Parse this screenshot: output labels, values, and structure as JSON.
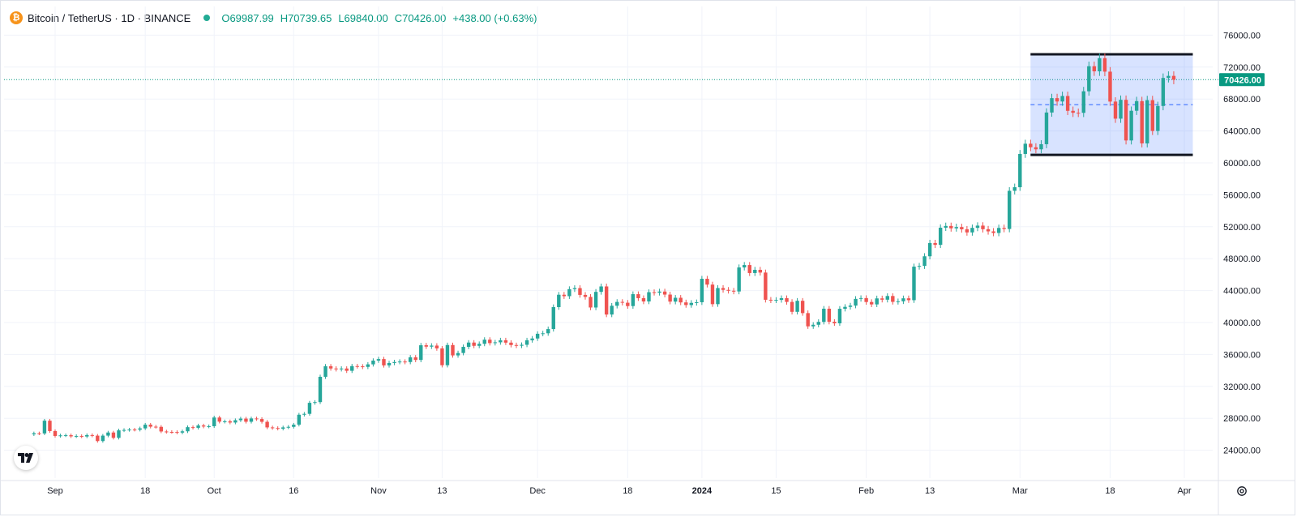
{
  "header": {
    "logo_glyph": "₿",
    "title": "Bitcoin / TetherUS · 1D · BINANCE",
    "open_label": "O",
    "open": "69987.99",
    "high_label": "H",
    "high": "70739.65",
    "low_label": "L",
    "low": "69840.00",
    "close_label": "C",
    "close": "70426.00",
    "change": "+438.00 (+0.63%)"
  },
  "colors": {
    "up": "#26a69a",
    "down": "#ef5350",
    "zone_fill": "#2962ff",
    "zone_border": "#131722",
    "price_badge": "#089981"
  },
  "icons": {
    "tv_logo": "tradingview-logo-icon",
    "settings": "gear-icon"
  },
  "chart_data": {
    "type": "candlestick",
    "title": "Bitcoin / TetherUS · 1D · BINANCE",
    "ylim": [
      20000,
      78000
    ],
    "y_ticks": [
      "24000.00",
      "28000.00",
      "32000.00",
      "36000.00",
      "40000.00",
      "44000.00",
      "48000.00",
      "52000.00",
      "56000.00",
      "60000.00",
      "64000.00",
      "68000.00",
      "72000.00",
      "76000.00"
    ],
    "x_ticks": [
      {
        "label": "Sep",
        "date": "2023-09-01"
      },
      {
        "label": "18",
        "date": "2023-09-18"
      },
      {
        "label": "Oct",
        "date": "2023-10-01"
      },
      {
        "label": "16",
        "date": "2023-10-16"
      },
      {
        "label": "Nov",
        "date": "2023-11-01"
      },
      {
        "label": "13",
        "date": "2023-11-13"
      },
      {
        "label": "Dec",
        "date": "2023-12-01"
      },
      {
        "label": "18",
        "date": "2023-12-18"
      },
      {
        "label": "2024",
        "date": "2024-01-01",
        "bold": true
      },
      {
        "label": "15",
        "date": "2024-01-15"
      },
      {
        "label": "Feb",
        "date": "2024-02-01"
      },
      {
        "label": "13",
        "date": "2024-02-13"
      },
      {
        "label": "Mar",
        "date": "2024-03-01"
      },
      {
        "label": "18",
        "date": "2024-03-18"
      },
      {
        "label": "Apr",
        "date": "2024-04-01"
      }
    ],
    "last_price": "70426.00",
    "last_price_value": 70426,
    "range_zone": {
      "start": "2024-03-01",
      "end": "2024-03-31",
      "top": 73600,
      "bottom": 61000,
      "mid": 67300
    },
    "closes": [
      {
        "start": "2023-08-28",
        "values": [
          26120,
          26100,
          27700,
          26400,
          25790,
          25860,
          25880,
          25740,
          25780,
          25720,
          25900,
          25830,
          25150,
          25830,
          26220,
          25550,
          26490,
          26540,
          26590,
          26570,
          26740,
          27200,
          26950,
          26930,
          26350,
          26290,
          26280,
          26210,
          26370,
          26890
        ]
      },
      {
        "start": "2023-09-27",
        "values": [
          26810,
          27100,
          26970,
          27010,
          28100,
          27580,
          27620,
          27470,
          27760,
          27960,
          27570,
          27980,
          27910,
          27560,
          26860,
          26780,
          26700,
          26860,
          26930,
          27200,
          28450,
          28560,
          29940,
          30030,
          33200,
          34520,
          34240,
          34140,
          34240,
          33950
        ]
      },
      {
        "start": "2023-10-27",
        "values": [
          34540,
          34510,
          34440,
          34760,
          35230,
          35420,
          34630,
          34930,
          35050,
          35110,
          35050,
          35640,
          35310,
          37150,
          36980,
          37110,
          36760,
          34650,
          37180,
          35880,
          36180,
          36950,
          37490,
          37080,
          37330,
          37850,
          37420,
          37520,
          37780,
          37480
        ]
      },
      {
        "start": "2023-11-26",
        "values": [
          37180,
          37090,
          37210,
          37780,
          38000,
          38590,
          38650,
          39180,
          41930,
          43480,
          43300,
          44180,
          44310,
          43460,
          43210,
          41880,
          43840,
          44520,
          41000,
          42100,
          42580,
          42480,
          42060,
          43550,
          43050,
          42640,
          43800,
          43730,
          43880,
          43500
        ]
      },
      {
        "start": "2023-12-26",
        "values": [
          42620,
          43100,
          42520,
          42190,
          42460,
          42540,
          45480,
          44750,
          42300,
          44320,
          44090,
          43980,
          43890,
          46900,
          47200,
          46200,
          46600,
          46260,
          42850,
          42780,
          42830,
          43050,
          42580,
          41340,
          42720,
          41180,
          39520,
          39720,
          40080,
          41730
        ]
      },
      {
        "start": "2024-01-25",
        "values": [
          40090,
          39900,
          41720,
          41960,
          42120,
          42960,
          43060,
          42570,
          42270,
          43020,
          42860,
          43320,
          42590,
          42660,
          43030,
          42800,
          47000,
          47090,
          48300,
          49960,
          49730,
          51880,
          52100,
          51800,
          51960,
          51680,
          51290,
          51860,
          52140,
          51690
        ]
      },
      {
        "start": "2024-02-24",
        "values": [
          51420,
          51220,
          51850,
          51720,
          56500,
          56950,
          61120,
          62400,
          61960,
          61700,
          62340,
          66310,
          68110,
          67690,
          68380,
          66520,
          66280,
          66270,
          68970,
          72110,
          71470,
          73120,
          71430,
          67680,
          65540,
          67900,
          62810,
          66530,
          67740,
          62440
        ]
      },
      {
        "start": "2024-03-25",
        "values": [
          67860,
          64000,
          67130,
          70640,
          70900,
          70420
        ]
      }
    ]
  }
}
